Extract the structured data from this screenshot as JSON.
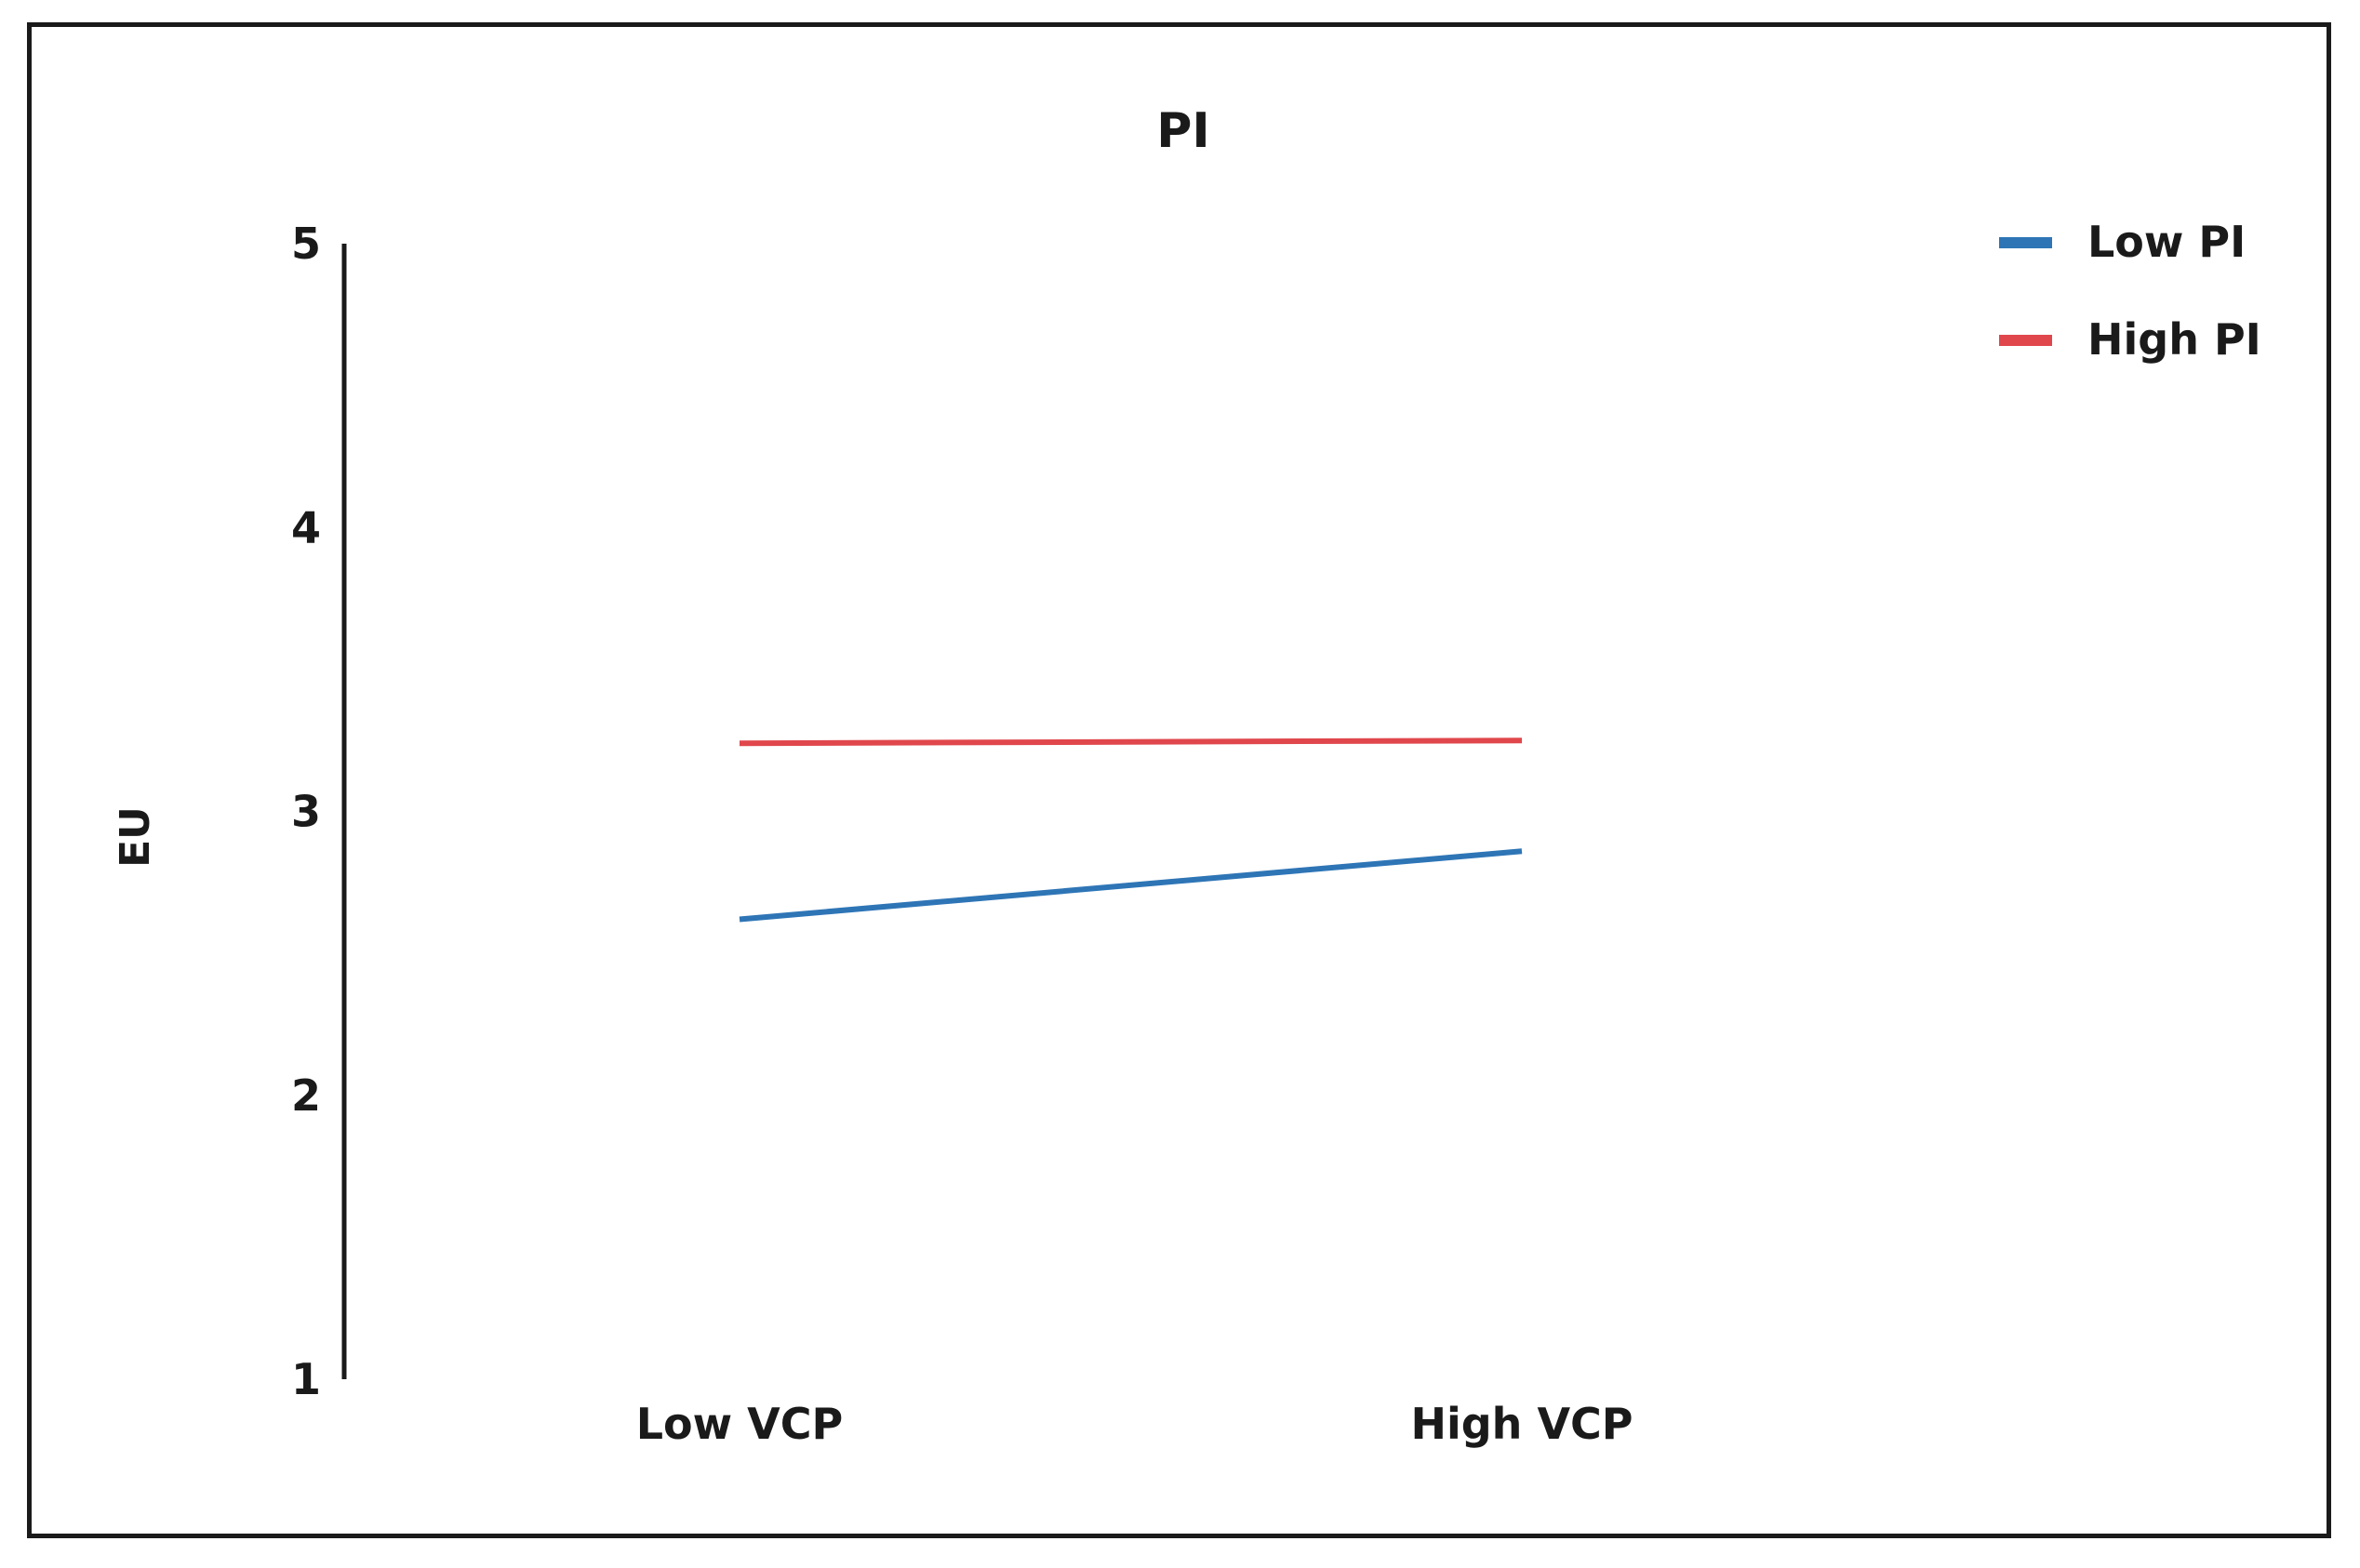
{
  "chart_data": {
    "type": "line",
    "title": "PI",
    "xlabel": "",
    "ylabel": "EU",
    "categories": [
      "Low VCP",
      "High VCP"
    ],
    "ylim": [
      1,
      5
    ],
    "yticks": [
      "1",
      "2",
      "3",
      "4",
      "5"
    ],
    "grid": false,
    "legend_position": "top-right",
    "series": [
      {
        "name": "Low PI",
        "values": [
          2.62,
          2.86
        ],
        "color": "#2e75b6"
      },
      {
        "name": "High PI",
        "values": [
          3.24,
          3.25
        ],
        "color": "#e0474c"
      }
    ]
  }
}
